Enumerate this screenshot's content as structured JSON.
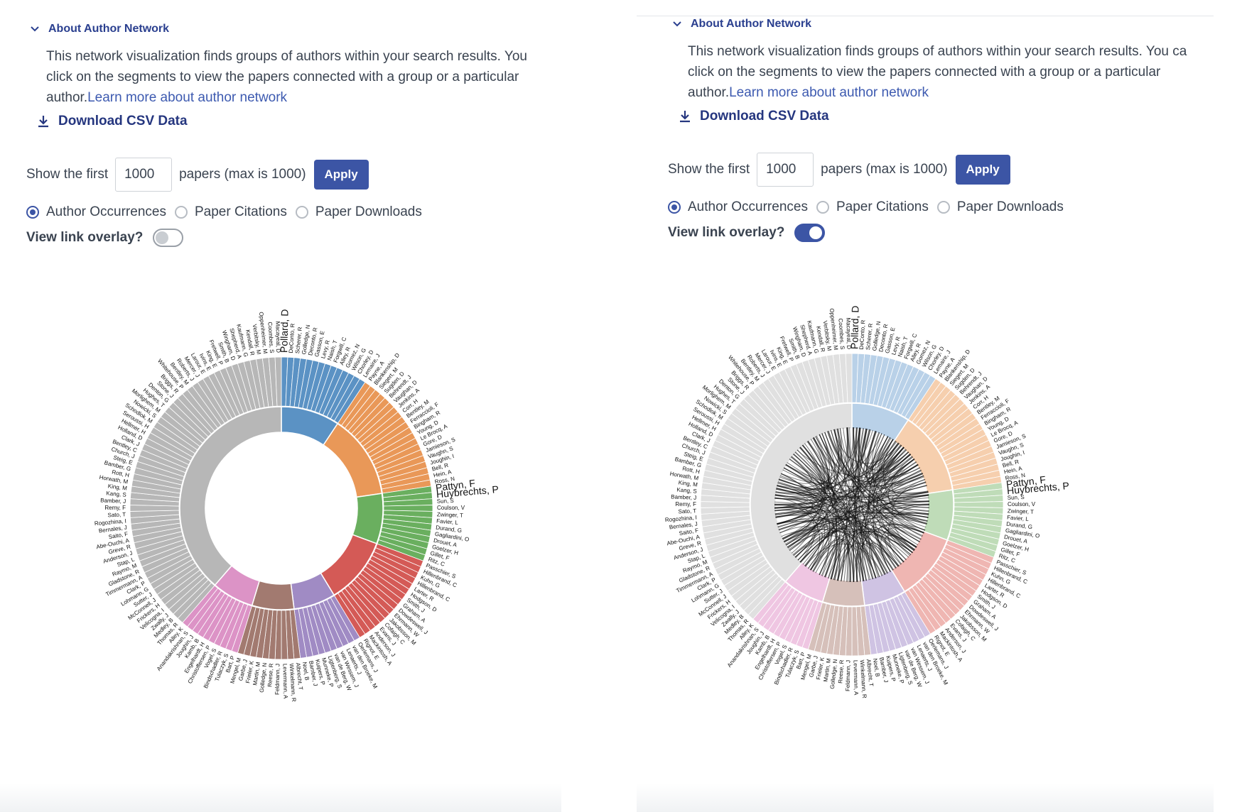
{
  "about": {
    "title": "About Author Network",
    "line1_left": "This network visualization finds groups of authors within your search results. You",
    "line1_right": "This network visualization finds groups of authors within your search results. You ca",
    "line2": "click on the segments to view the papers connected with a group or a particular",
    "line3_prefix": "author.",
    "learn_more": "Learn more about author network"
  },
  "download_label": "Download CSV Data",
  "controls": {
    "show_prefix": "Show the first",
    "papers_value": "1000",
    "papers_suffix": "papers (max is 1000)",
    "apply_label": "Apply",
    "radios": [
      "Author Occurrences",
      "Paper Citations",
      "Paper Downloads"
    ],
    "selected_radio": "Author Occurrences",
    "overlay_label": "View link overlay?",
    "overlay_left": false,
    "overlay_right": true
  },
  "network": {
    "type": "sunburst",
    "groups": [
      {
        "color": "#5b92c4",
        "light": "#b9d1e8",
        "count": 14,
        "labels": [
          "Pollard, D",
          "DeConto, R",
          "Scherer, R",
          "Golledge, N",
          "Deconto, R",
          "Gasson, E",
          "Levy, R",
          "Naish, T",
          "Forgwill, C",
          "Alley, R",
          "Gomez, N",
          "Wilson, G",
          "Chorley, D",
          "Lemaire, J"
        ]
      },
      {
        "color": "#e99858",
        "light": "#f6cfae",
        "count": 20,
        "labels": [
          "Payne, A",
          "Blankenship, D",
          "Siegert, M",
          "Sugden, D",
          "Behrendt, J",
          "Vaughan, D",
          "Jenkins, A",
          "Corr, H",
          "Bentley, M",
          "Ferraccioli, F",
          "Bingham, R",
          "Young, D",
          "Le Brocq, A",
          "Gore, D",
          "Jamieson, S",
          "Vaughn, S",
          "Joughin, I",
          "Bell, R",
          "Hein, A",
          "Ross, N"
        ]
      },
      {
        "color": "#6aaf5f",
        "light": "#bfdcb8",
        "count": 12,
        "labels": [
          "Pattyn, F",
          "Huybrechts, P",
          "Sun, S",
          "Coulson, V",
          "Zwinger, T",
          "Favier, L",
          "Durand, G",
          "Gagliardini, O",
          "Drouet, A",
          "Goelzer, H",
          "Gillet, F",
          "Ritz, C"
        ]
      },
      {
        "color": "#d45a56",
        "light": "#efb6b2",
        "count": 16,
        "labels": [
          "Passchier, S",
          "Hillenbrand, C",
          "Kuhn, G",
          "Hillenbrand, C",
          "Larter, R",
          "Hodgson, D",
          "Smith, J",
          "Graham, A",
          "Dowdeswell, J",
          "Ehrmann, W",
          "Jakobsson, M",
          "Cofaigh, C",
          "Evans, J",
          "Anderson, J",
          "Mackintosh, A",
          "Rignot, E"
        ]
      },
      {
        "color": "#a08bc4",
        "light": "#cfc3e3",
        "count": 10,
        "labels": [
          "Oerlemans, J",
          "van den Broeke, M",
          "Lenaerts, J",
          "van Wessem, J",
          "van de Berg, W",
          "Ligtenberg, S",
          "Munneke, P",
          "Kuipers, P",
          "Bamber, J",
          "Noel, B"
        ]
      },
      {
        "color": "#a27a70",
        "light": "#d6c0ba",
        "count": 10,
        "labels": [
          "Albrecht, T",
          "Winkelmann, R",
          "Levermann, A",
          "Feldmann, J",
          "Reese, R",
          "Golledge, N",
          "Martin, M",
          "Frieler, K",
          "Garbe, J",
          "Mengel, M"
        ]
      },
      {
        "color": "#dc93c6",
        "light": "#efc6e2",
        "count": 10,
        "labels": [
          "Bart, P",
          "Tulaczyk, S",
          "Bindschadler, R",
          "Vogel, S",
          "Christoffersen, P",
          "Engelhardt, H",
          "Kamb, B",
          "Joughin, J",
          "Anandakrishnan, S",
          "Alley, K"
        ]
      },
      {
        "color": "#b7b7b7",
        "light": "#e0e0e0",
        "count": 58,
        "labels": [
          "Thomas, R",
          "Medley, B",
          "Zwally, J",
          "Velicogna, I",
          "Frickers, H",
          "McConnell, J",
          "Sutter, J",
          "Lohmann, G",
          "Clark, P",
          "Timmermann, A",
          "Gladstone, R",
          "Raymo, M",
          "Stap, L",
          "Anderson, J",
          "Greve, R",
          "Abe-Ouchi, A",
          "Saito, F",
          "Bernales, J",
          "Rogozhina, I",
          "Sato, T",
          "Remy, F",
          "Bamber, J",
          "Kang, S",
          "King, M",
          "Horwath, M",
          "Rott, H",
          "Bamber, G",
          "Steig, E",
          "Church, J",
          "Bentley, C",
          "Clark, J",
          "Holland, D",
          "Hellmer, H",
          "Seroussi, H",
          "Schodlok, M",
          "Nowicki, S",
          "Morlighem, M",
          "Hughes, T",
          "Denton, G",
          "Stone, J",
          "Briggs, R",
          "Whitehouse, P",
          "Bentley, M",
          "Roberts, J",
          "Mercer, J",
          "Larour, E",
          "Ivins, E",
          "King, E",
          "Fretwell, P",
          "Smith, B",
          "Wingham, D",
          "Shepherd, A",
          "Kaufmann, G",
          "Kendall, R",
          "Verbitsky, M",
          "Oppenheimer, M",
          "Coombes, S",
          "Macayeal, D"
        ]
      }
    ],
    "big_labels": [
      "Pollard, D",
      "Pattyn, F",
      "Huybrechts, P"
    ]
  }
}
